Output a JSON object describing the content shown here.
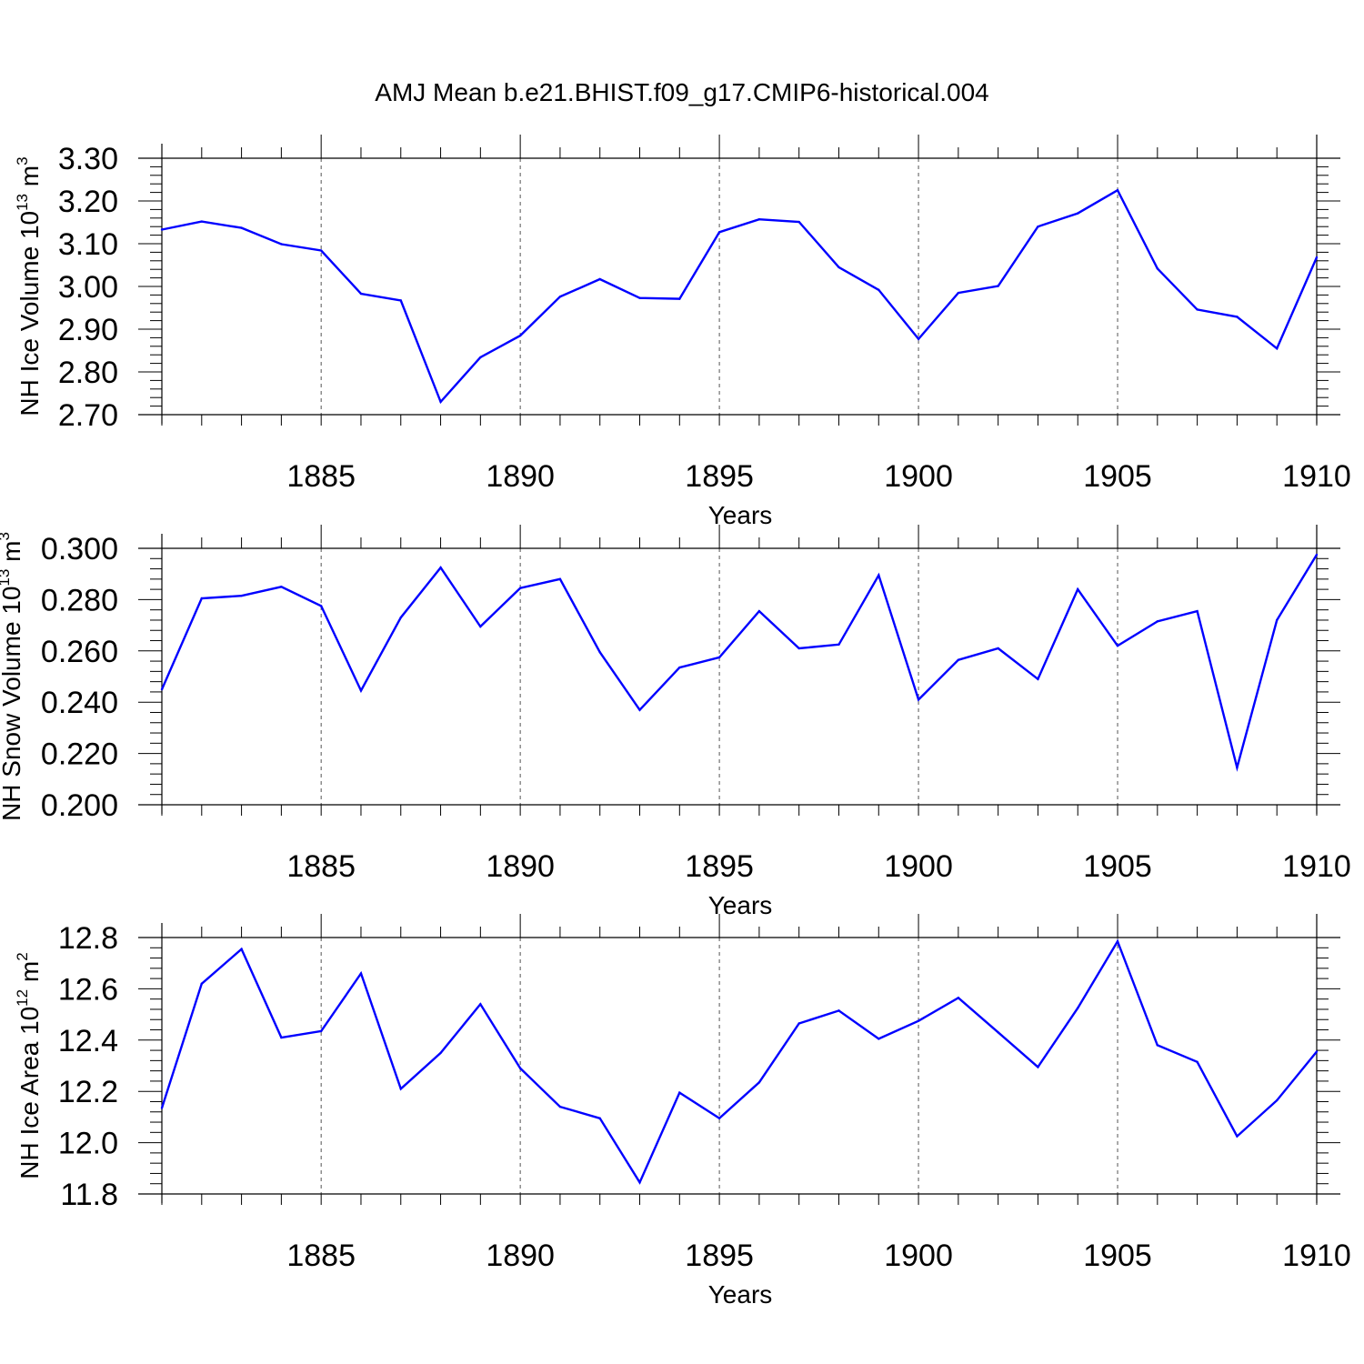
{
  "title": "AMJ Mean b.e21.BHIST.f09_g17.CMIP6-historical.004",
  "colors": {
    "line": "#0000ff",
    "frame": "#000000",
    "grid": "#555555"
  },
  "chart_data": [
    {
      "type": "line",
      "ylabel": {
        "main": "NH Ice Volume 10",
        "exp": "13",
        "unit": " m",
        "unit_exp": "3"
      },
      "xlabel": "Years",
      "xlim": [
        1881,
        1910
      ],
      "ylim": [
        2.7,
        3.3
      ],
      "ytick_step": 0.1,
      "ytick_decimals": 2,
      "xticks": [
        1885,
        1890,
        1895,
        1900,
        1905,
        1910
      ],
      "grid": "vertical-dashed",
      "x": [
        1881,
        1882,
        1883,
        1884,
        1885,
        1886,
        1887,
        1888,
        1889,
        1890,
        1891,
        1892,
        1893,
        1894,
        1895,
        1896,
        1897,
        1898,
        1899,
        1900,
        1901,
        1902,
        1903,
        1904,
        1905,
        1906,
        1907,
        1908,
        1909,
        1910
      ],
      "values": [
        3.133,
        3.152,
        3.137,
        3.099,
        3.084,
        2.983,
        2.967,
        2.73,
        2.834,
        2.885,
        2.976,
        3.017,
        2.973,
        2.971,
        3.127,
        3.157,
        3.151,
        3.045,
        2.992,
        2.877,
        2.985,
        3.001,
        3.14,
        3.171,
        3.225,
        3.042,
        2.946,
        2.929,
        2.855,
        3.068
      ]
    },
    {
      "type": "line",
      "ylabel": {
        "main": "NH Snow Volume 10",
        "exp": "13",
        "unit": " m",
        "unit_exp": "3"
      },
      "xlabel": "Years",
      "xlim": [
        1881,
        1910
      ],
      "ylim": [
        0.2,
        0.3
      ],
      "ytick_step": 0.02,
      "ytick_decimals": 3,
      "xticks": [
        1885,
        1890,
        1895,
        1900,
        1905,
        1910
      ],
      "grid": "vertical-dashed",
      "x": [
        1881,
        1882,
        1883,
        1884,
        1885,
        1886,
        1887,
        1888,
        1889,
        1890,
        1891,
        1892,
        1893,
        1894,
        1895,
        1896,
        1897,
        1898,
        1899,
        1900,
        1901,
        1902,
        1903,
        1904,
        1905,
        1906,
        1907,
        1908,
        1909,
        1910
      ],
      "values": [
        0.245,
        0.2805,
        0.2815,
        0.285,
        0.2775,
        0.2445,
        0.273,
        0.2925,
        0.2695,
        0.2845,
        0.288,
        0.2595,
        0.237,
        0.2535,
        0.2575,
        0.2755,
        0.261,
        0.2625,
        0.2895,
        0.241,
        0.2565,
        0.261,
        0.249,
        0.284,
        0.262,
        0.2715,
        0.2755,
        0.2145,
        0.272,
        0.2975
      ]
    },
    {
      "type": "line",
      "ylabel": {
        "main": "NH Ice Area 10",
        "exp": "12",
        "unit": " m",
        "unit_exp": "2"
      },
      "xlabel": "Years",
      "xlim": [
        1881,
        1910
      ],
      "ylim": [
        11.8,
        12.8
      ],
      "ytick_step": 0.2,
      "ytick_decimals": 1,
      "xticks": [
        1885,
        1890,
        1895,
        1900,
        1905,
        1910
      ],
      "grid": "vertical-dashed",
      "x": [
        1881,
        1882,
        1883,
        1884,
        1885,
        1886,
        1887,
        1888,
        1889,
        1890,
        1891,
        1892,
        1893,
        1894,
        1895,
        1896,
        1897,
        1898,
        1899,
        1900,
        1901,
        1902,
        1903,
        1904,
        1905,
        1906,
        1907,
        1908,
        1909,
        1910
      ],
      "values": [
        12.135,
        12.62,
        12.755,
        12.41,
        12.435,
        12.66,
        12.21,
        12.35,
        12.54,
        12.29,
        12.14,
        12.095,
        11.845,
        12.195,
        12.095,
        12.235,
        12.465,
        12.515,
        12.405,
        12.475,
        12.565,
        12.43,
        12.295,
        12.525,
        12.785,
        12.38,
        12.315,
        12.025,
        12.165,
        12.355
      ]
    }
  ]
}
